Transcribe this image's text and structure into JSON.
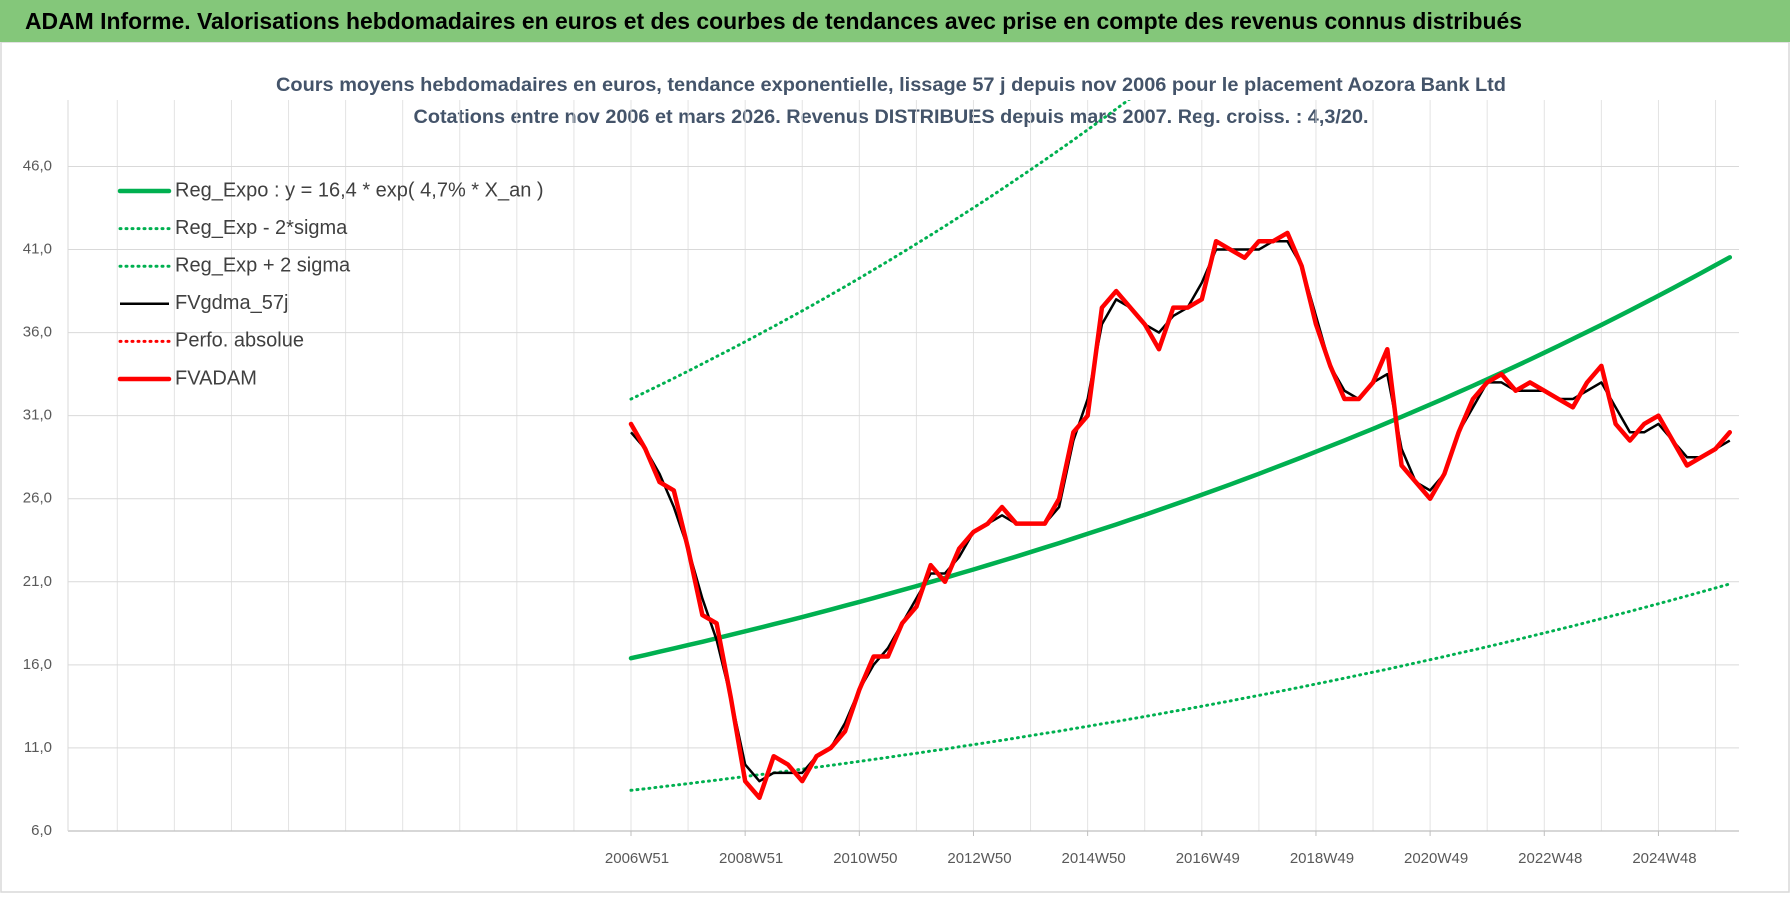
{
  "header": {
    "title": "ADAM Informe. Valorisations hebdomadaires en euros et des courbes de tendances avec prise en compte des revenus connus distribués"
  },
  "chart_data": {
    "type": "line",
    "title": "Cours moyens hebdomadaires en euros, tendance exponentielle, lissage 57 j depuis nov 2006 pour le placement Aozora Bank Ltd",
    "subtitle": "Cotations entre nov 2006 et mars 2026. Revenus DISTRIBUES depuis mars 2007. Reg. croiss. : 4,3/20.",
    "grid": true,
    "legend": "upper left",
    "ylim": [
      6,
      50
    ],
    "yticks": [
      {
        "value": 6,
        "label": "6,0"
      },
      {
        "value": 11,
        "label": "11,0"
      },
      {
        "value": 16,
        "label": "16,0"
      },
      {
        "value": 21,
        "label": "21,0"
      },
      {
        "value": 26,
        "label": "26,0"
      },
      {
        "value": 31,
        "label": "31,0"
      },
      {
        "value": 36,
        "label": "36,0"
      },
      {
        "value": 41,
        "label": "41,0"
      },
      {
        "value": 46,
        "label": "46,0"
      }
    ],
    "categories": [
      "2006W51",
      null,
      null,
      null,
      null,
      null,
      null,
      null,
      "2008W51",
      null,
      null,
      null,
      null,
      null,
      null,
      null,
      "2010W50",
      null,
      null,
      null,
      null,
      null,
      null,
      null,
      "2012W50",
      null,
      null,
      null,
      null,
      null,
      null,
      null,
      "2014W50",
      null,
      null,
      null,
      null,
      null,
      null,
      null,
      "2016W49",
      null,
      null,
      null,
      null,
      null,
      null,
      null,
      "2018W49",
      null,
      null,
      null,
      null,
      null,
      null,
      null,
      "2020W49",
      null,
      null,
      null,
      null,
      null,
      null,
      null,
      "2022W48",
      null,
      null,
      null,
      null,
      null,
      null,
      null,
      "2024W48",
      null,
      null,
      null,
      null,
      null
    ],
    "series": [
      {
        "name": "Reg_Expo : y = 16,4 * exp( 4,7% *  X_an )",
        "color": "#00b050",
        "line_style": "thick",
        "values": [
          16.4,
          16.59,
          16.79,
          16.99,
          17.19,
          17.39,
          17.6,
          17.81,
          18.02,
          18.23,
          18.45,
          18.66,
          18.88,
          19.1,
          19.33,
          19.56,
          19.79,
          20.02,
          20.26,
          20.5,
          20.74,
          20.99,
          21.23,
          21.49,
          21.74,
          22.0,
          22.26,
          22.52,
          22.79,
          23.06,
          23.33,
          23.61,
          23.89,
          24.17,
          24.45,
          24.74,
          25.03,
          25.33,
          25.63,
          25.93,
          26.24,
          26.55,
          26.86,
          27.18,
          27.5,
          27.83,
          28.16,
          28.49,
          28.83,
          29.17,
          29.51,
          29.86,
          30.21,
          30.57,
          30.93,
          31.3,
          31.67,
          32.04,
          32.42,
          32.8,
          33.19,
          33.58,
          33.98,
          34.38,
          34.79,
          35.2,
          35.62,
          36.04,
          36.46,
          36.89,
          37.33,
          37.77,
          38.22,
          38.67,
          39.13,
          39.59,
          40.06,
          40.53
        ]
      },
      {
        "name": "Reg_Exp - 2*sigma",
        "color": "#00b050",
        "line_style": "dotted",
        "values": [
          8.45,
          8.54,
          8.65,
          8.75,
          8.85,
          8.96,
          9.06,
          9.17,
          9.28,
          9.39,
          9.5,
          9.61,
          9.72,
          9.84,
          9.95,
          10.07,
          10.19,
          10.31,
          10.43,
          10.56,
          10.68,
          10.81,
          10.93,
          11.07,
          11.2,
          11.33,
          11.46,
          11.6,
          11.74,
          11.88,
          12.01,
          12.16,
          12.3,
          12.45,
          12.59,
          12.74,
          12.89,
          13.04,
          13.2,
          13.35,
          13.51,
          13.67,
          13.83,
          14.0,
          14.16,
          14.33,
          14.5,
          14.67,
          14.85,
          15.02,
          15.2,
          15.38,
          15.56,
          15.74,
          15.93,
          16.12,
          16.31,
          16.5,
          16.7,
          16.89,
          17.09,
          17.29,
          17.5,
          17.71,
          17.92,
          18.13,
          18.34,
          18.56,
          18.78,
          19.0,
          19.22,
          19.45,
          19.68,
          19.91,
          20.15,
          20.39,
          20.63,
          20.87
        ]
      },
      {
        "name": "Reg_Exp + 2 sigma",
        "color": "#00b050",
        "line_style": "dotted",
        "values": [
          32.0,
          32.41,
          32.83,
          33.25,
          33.68,
          34.12,
          34.56,
          35.0,
          35.45,
          35.91,
          36.37,
          36.84,
          37.31,
          37.79,
          38.28,
          38.77,
          39.27,
          39.78,
          40.29,
          40.81,
          41.34,
          41.87,
          42.41,
          42.96,
          43.51,
          44.07,
          44.64,
          45.22,
          45.8,
          46.39,
          46.99,
          47.59,
          48.21,
          48.83,
          49.46,
          50.09,
          null,
          null,
          null,
          null,
          null,
          null,
          null,
          null,
          null,
          null,
          null,
          null,
          null,
          null,
          null,
          null,
          null,
          null,
          null,
          null,
          null,
          null,
          null,
          null,
          null,
          null,
          null,
          null,
          null,
          null,
          null,
          null,
          null,
          null,
          null,
          null,
          null,
          null,
          null,
          null,
          null,
          null
        ]
      },
      {
        "name": "FVgdma_57j",
        "color": "#000000",
        "line_style": "thin",
        "values": [
          30,
          29,
          27.5,
          25.5,
          23,
          20,
          17.5,
          14,
          10,
          9,
          9.5,
          9.5,
          9.5,
          10.5,
          11,
          12.5,
          14.5,
          16,
          17,
          18.5,
          20,
          21.5,
          21.5,
          22.5,
          24,
          24.5,
          25,
          24.5,
          24.5,
          24.5,
          25.5,
          29.5,
          32,
          36.5,
          38,
          37.5,
          36.5,
          36,
          37,
          37.5,
          39,
          41,
          41,
          41,
          41,
          41.5,
          41.5,
          40,
          37,
          34,
          32.5,
          32,
          33,
          33.5,
          29,
          27,
          26.5,
          27.5,
          30,
          31.5,
          33,
          33,
          32.5,
          32.5,
          32.5,
          32,
          32,
          32.5,
          33,
          31.5,
          30,
          30,
          30.5,
          29.5,
          28.5,
          28.5,
          29,
          29.5
        ]
      },
      {
        "name": "Perfo. absolue",
        "color": "#ff0000",
        "line_style": "dotted",
        "values": [
          null,
          null,
          null,
          null,
          null,
          null,
          null,
          null,
          null,
          null,
          null,
          null,
          null,
          null,
          null,
          null,
          null,
          null,
          null,
          null,
          null,
          null,
          null,
          null,
          null,
          null,
          null,
          null,
          null,
          null,
          null,
          null,
          null,
          null,
          null,
          null,
          null,
          null,
          null,
          null,
          null,
          null,
          null,
          null,
          null,
          null,
          null,
          null,
          null,
          null,
          null,
          null,
          null,
          null,
          null,
          null,
          null,
          null,
          null,
          null,
          null,
          null,
          null,
          null,
          null,
          null,
          null,
          null,
          null,
          null,
          null,
          null,
          null,
          null,
          null,
          null,
          null,
          null
        ]
      },
      {
        "name": "FVADAM",
        "color": "#ff0000",
        "line_style": "thick",
        "values": [
          30.5,
          29,
          27,
          26.5,
          23,
          19,
          18.5,
          14,
          9,
          8,
          10.5,
          10,
          9,
          10.5,
          11,
          12,
          14.5,
          16.5,
          16.5,
          18.5,
          19.5,
          22,
          21,
          23,
          24,
          24.5,
          25.5,
          24.5,
          24.5,
          24.5,
          26,
          30,
          31,
          37.5,
          38.5,
          37.5,
          36.5,
          35,
          37.5,
          37.5,
          38,
          41.5,
          41,
          40.5,
          41.5,
          41.5,
          42,
          40,
          36.5,
          34,
          32,
          32,
          33,
          35,
          28,
          27,
          26,
          27.5,
          30,
          32,
          33,
          33.5,
          32.5,
          33,
          32.5,
          32,
          31.5,
          33,
          34,
          30.5,
          29.5,
          30.5,
          31,
          29.5,
          28,
          28.5,
          29,
          30
        ]
      }
    ]
  }
}
